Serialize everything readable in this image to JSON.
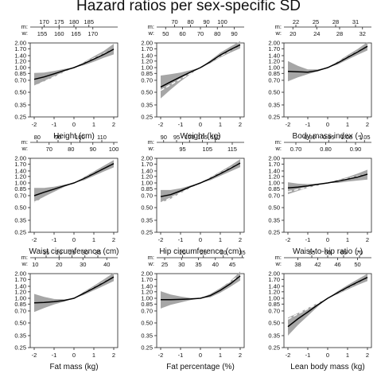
{
  "title": "Hazard ratios per sex-specific SD",
  "chart_data": {
    "type": "line",
    "yscale": "log",
    "y_ticks": [
      "2.00",
      "1.70",
      "1.40",
      "1.20",
      "1.00",
      "0.85",
      "0.70",
      "0.50",
      "0.35",
      "0.25"
    ],
    "x_ticks": [
      "-2",
      "-1",
      "0",
      "1",
      "2"
    ],
    "xlim": [
      -2.2,
      2.2
    ],
    "ylim": [
      0.25,
      2.0
    ],
    "panels": [
      {
        "xlabel": "Height (cm)",
        "m_label": "m:",
        "m_ticks": [
          "170",
          "175",
          "180",
          "185"
        ],
        "m_pos": [
          -1.5,
          -0.75,
          0,
          0.75
        ],
        "w_label": "w:",
        "w_ticks": [
          "155",
          "160",
          "165",
          "170"
        ],
        "w_pos": [
          -1.6,
          -0.75,
          0.1,
          0.95
        ],
        "x": [
          -2,
          -1.5,
          -1,
          -0.5,
          0,
          0.5,
          1,
          1.5,
          2
        ],
        "hr": [
          0.72,
          0.77,
          0.84,
          0.92,
          1.0,
          1.12,
          1.27,
          1.45,
          1.68
        ],
        "lo": [
          0.6,
          0.68,
          0.77,
          0.88,
          1.0,
          1.07,
          1.18,
          1.32,
          1.45
        ],
        "hi": [
          0.86,
          0.87,
          0.91,
          0.96,
          1.0,
          1.17,
          1.37,
          1.6,
          1.95
        ]
      },
      {
        "xlabel": "Weight (kg)",
        "m_label": "m:",
        "m_ticks": [
          "70",
          "80",
          "90",
          "100"
        ],
        "m_pos": [
          -1.3,
          -0.5,
          0.3,
          1.1
        ],
        "w_label": "w:",
        "w_ticks": [
          "50",
          "60",
          "70",
          "80",
          "90"
        ],
        "w_pos": [
          -1.75,
          -0.9,
          0,
          0.85,
          1.7
        ],
        "x": [
          -2,
          -1.5,
          -1,
          -0.5,
          0,
          0.5,
          1,
          1.5,
          2
        ],
        "hr": [
          0.58,
          0.67,
          0.77,
          0.88,
          1.0,
          1.18,
          1.42,
          1.65,
          1.9
        ],
        "lo": [
          0.42,
          0.54,
          0.68,
          0.83,
          1.0,
          1.13,
          1.33,
          1.52,
          1.72
        ],
        "hi": [
          0.8,
          0.83,
          0.87,
          0.93,
          1.0,
          1.23,
          1.52,
          1.8,
          2.1
        ]
      },
      {
        "xlabel": "Body mass index (-)",
        "m_label": "m:",
        "m_ticks": [
          "22",
          "25",
          "28",
          "31"
        ],
        "m_pos": [
          -1.6,
          -0.6,
          0.4,
          1.4
        ],
        "w_label": "w:",
        "w_ticks": [
          "20",
          "24",
          "28",
          "32"
        ],
        "w_pos": [
          -1.75,
          -0.55,
          0.6,
          1.75
        ],
        "x": [
          -2,
          -1.5,
          -1,
          -0.5,
          0,
          0.5,
          1,
          1.5,
          2
        ],
        "hr": [
          0.9,
          0.89,
          0.88,
          0.92,
          1.0,
          1.14,
          1.33,
          1.55,
          1.82
        ],
        "lo": [
          0.68,
          0.76,
          0.83,
          0.9,
          1.0,
          1.09,
          1.25,
          1.43,
          1.62
        ],
        "hi": [
          1.2,
          1.05,
          0.95,
          0.95,
          1.0,
          1.19,
          1.42,
          1.68,
          2.05
        ]
      },
      {
        "xlabel": "Waist circumference (cm)",
        "m_label": "m:",
        "m_ticks": [
          "80",
          "90",
          "100",
          "110"
        ],
        "m_pos": [
          -1.85,
          -0.8,
          0.3,
          1.4
        ],
        "w_label": "w:",
        "w_ticks": [
          "70",
          "80",
          "90",
          "100"
        ],
        "w_pos": [
          -1.25,
          -0.15,
          0.95,
          2.0
        ],
        "x": [
          -2,
          -1.5,
          -1,
          -0.5,
          0,
          0.5,
          1,
          1.5,
          2
        ],
        "hr": [
          0.7,
          0.77,
          0.84,
          0.92,
          1.0,
          1.13,
          1.3,
          1.5,
          1.72
        ],
        "lo": [
          0.57,
          0.68,
          0.78,
          0.89,
          1.0,
          1.08,
          1.22,
          1.38,
          1.55
        ],
        "hi": [
          0.87,
          0.87,
          0.9,
          0.95,
          1.0,
          1.18,
          1.38,
          1.62,
          1.9
        ]
      },
      {
        "xlabel": "Hip circumference (cm)",
        "m_label": "m:",
        "m_ticks": [
          "90",
          "95",
          "100",
          "105",
          "110"
        ],
        "m_pos": [
          -1.85,
          -1.2,
          -0.55,
          0.1,
          0.75
        ],
        "w_label": "w:",
        "w_ticks": [
          "95",
          "105",
          "115"
        ],
        "w_pos": [
          -0.9,
          0.35,
          1.6
        ],
        "x": [
          -2,
          -1.5,
          -1,
          -0.5,
          0,
          0.5,
          1,
          1.5,
          2
        ],
        "hr": [
          0.68,
          0.72,
          0.8,
          0.9,
          1.0,
          1.13,
          1.3,
          1.5,
          1.75
        ],
        "lo": [
          0.57,
          0.64,
          0.75,
          0.87,
          1.0,
          1.08,
          1.22,
          1.38,
          1.56
        ],
        "hi": [
          0.82,
          0.82,
          0.86,
          0.93,
          1.0,
          1.18,
          1.38,
          1.62,
          1.95
        ]
      },
      {
        "xlabel": "Waist-to-hip ratio (-)",
        "m_label": "m:",
        "m_ticks": [
          "0.90",
          "0.95",
          "1.00",
          "1.05"
        ],
        "m_pos": [
          -0.9,
          0.05,
          0.95,
          1.85
        ],
        "w_label": "w:",
        "w_ticks": [
          "0.70",
          "0.80",
          "0.90"
        ],
        "w_pos": [
          -1.6,
          -0.1,
          1.4
        ],
        "x": [
          -2,
          -1.5,
          -1,
          -0.5,
          0,
          0.5,
          1,
          1.5,
          2
        ],
        "hr": [
          0.87,
          0.89,
          0.92,
          0.96,
          1.0,
          1.05,
          1.11,
          1.18,
          1.28
        ],
        "lo": [
          0.73,
          0.8,
          0.87,
          0.93,
          1.0,
          1.0,
          1.04,
          1.07,
          1.1
        ],
        "hi": [
          1.02,
          0.98,
          0.97,
          0.98,
          1.0,
          1.09,
          1.18,
          1.3,
          1.45
        ]
      },
      {
        "xlabel": "Fat mass (kg)",
        "m_label": "m:",
        "m_ticks": [
          "15",
          "20",
          "25",
          "30",
          "35"
        ],
        "m_pos": [
          -1.4,
          -0.75,
          -0.1,
          0.55,
          1.2
        ],
        "w_label": "w:",
        "w_ticks": [
          "10",
          "20",
          "30",
          "40"
        ],
        "w_pos": [
          -1.95,
          -0.75,
          0.45,
          1.65
        ],
        "x": [
          -2,
          -1.5,
          -1,
          -0.5,
          0,
          0.5,
          1,
          1.5,
          2
        ],
        "hr": [
          0.88,
          0.89,
          0.91,
          0.94,
          1.0,
          1.15,
          1.33,
          1.55,
          1.82
        ],
        "lo": [
          0.68,
          0.76,
          0.84,
          0.91,
          1.0,
          1.1,
          1.25,
          1.42,
          1.62
        ],
        "hi": [
          1.13,
          1.04,
          0.98,
          0.97,
          1.0,
          1.2,
          1.42,
          1.7,
          2.05
        ]
      },
      {
        "xlabel": "Fat percentage (%)",
        "m_label": "m:",
        "m_ticks": [
          "20",
          "25",
          "30",
          "35"
        ],
        "m_pos": [
          -0.9,
          0.15,
          1.15,
          2.1
        ],
        "w_label": "w:",
        "w_ticks": [
          "25",
          "30",
          "35",
          "40",
          "45"
        ],
        "w_pos": [
          -1.8,
          -0.95,
          -0.1,
          0.75,
          1.6
        ],
        "x": [
          -2,
          -1.5,
          -1,
          -0.5,
          0,
          0.5,
          1,
          1.5,
          2
        ],
        "hr": [
          0.96,
          0.96,
          0.97,
          0.98,
          1.0,
          1.08,
          1.25,
          1.5,
          1.88
        ],
        "lo": [
          0.75,
          0.83,
          0.89,
          0.95,
          1.0,
          1.03,
          1.17,
          1.38,
          1.65
        ],
        "hi": [
          1.22,
          1.11,
          1.05,
          1.01,
          1.0,
          1.13,
          1.33,
          1.62,
          2.12
        ]
      },
      {
        "xlabel": "Lean body mass (kg)",
        "m_label": "m:",
        "m_ticks": [
          "55",
          "60",
          "65",
          "70"
        ],
        "m_pos": [
          -0.8,
          0,
          0.8,
          1.6
        ],
        "w_label": "w:",
        "w_ticks": [
          "38",
          "42",
          "46",
          "50"
        ],
        "w_pos": [
          -1.5,
          -0.5,
          0.5,
          1.5
        ],
        "x": [
          -2,
          -1.5,
          -1,
          -0.5,
          0,
          0.5,
          1,
          1.5,
          2
        ],
        "hr": [
          0.45,
          0.56,
          0.68,
          0.83,
          1.0,
          1.17,
          1.36,
          1.57,
          1.8
        ],
        "lo": [
          0.35,
          0.47,
          0.61,
          0.79,
          1.0,
          1.12,
          1.28,
          1.45,
          1.62
        ],
        "hi": [
          0.58,
          0.66,
          0.76,
          0.88,
          1.0,
          1.22,
          1.45,
          1.7,
          2.0
        ]
      }
    ]
  }
}
